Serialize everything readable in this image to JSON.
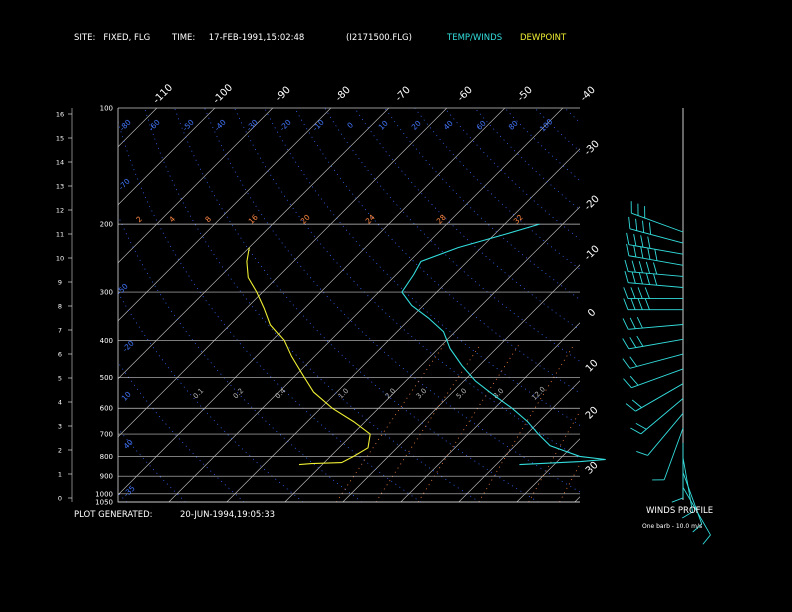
{
  "header": {
    "site": "SITE:   FIXED, FLG",
    "time": "TIME:     17-FEB-1991,15:02:48",
    "file": "(I2171500.FLG)",
    "legend_temp": "TEMP/WINDS",
    "legend_dew": "DEWPOINT"
  },
  "footer": {
    "plot_generated_label": "PLOT GENERATED:",
    "plot_generated_value": "20-JUN-1994,19:05:33",
    "winds_profile": "WINDS PROFILE",
    "barb_note": "One barb - 10.0 m/s"
  },
  "colors": {
    "background": "#000000",
    "temperature": "#33dddd",
    "dewpoint": "#eeee33",
    "isotherm": "#c8c8c8",
    "dry_adiabat": "#3366ff",
    "mixing_ratio": "#ff8844",
    "wind_barb": "#33dddd"
  },
  "chart_data": {
    "type": "line",
    "subtype": "skew-T log-P",
    "title": "",
    "pressure_levels_hpa": [
      100,
      200,
      300,
      400,
      500,
      600,
      700,
      800,
      900,
      1000,
      1050
    ],
    "pressure_labels": [
      "100",
      "200",
      "300",
      "400",
      "500",
      "600",
      "700",
      "800",
      "900",
      "1000",
      "1050"
    ],
    "height_ticks_km": [
      "16",
      "15",
      "14",
      "13",
      "12",
      "11",
      "10",
      "9",
      "8",
      "7",
      "6",
      "5",
      "4",
      "3",
      "2",
      "1",
      "0"
    ],
    "isotherm_labels_top": [
      "-110",
      "-100",
      "-90",
      "-80",
      "-70",
      "-60",
      "-50",
      "-40"
    ],
    "isotherm_labels_right": [
      "-30",
      "-20",
      "-10",
      "0",
      "10",
      "20",
      "30"
    ],
    "adiabat_labels": [
      "-80",
      "-60",
      "-50",
      "-40",
      "-30",
      "-20",
      "-10",
      "0",
      "10",
      "20",
      "40",
      "60",
      "80",
      "100",
      "120",
      "140",
      "160"
    ],
    "mixing_ratio_labels_upper": [
      "2",
      "4",
      "8",
      "16",
      "20",
      "24",
      "28",
      "32"
    ],
    "mixing_ratio_labels_lower": [
      "0.1",
      "0.2",
      "0.4",
      "1.0",
      "2.0",
      "3.0",
      "5.0",
      "8.0",
      "12.0"
    ],
    "series": [
      {
        "name": "TEMP/WINDS",
        "points": [
          [
            -54,
            200
          ],
          [
            -58,
            212
          ],
          [
            -64,
            230
          ],
          [
            -68,
            250
          ],
          [
            -67,
            270
          ],
          [
            -66,
            300
          ],
          [
            -62,
            325
          ],
          [
            -57,
            350
          ],
          [
            -52,
            380
          ],
          [
            -48,
            420
          ],
          [
            -43,
            465
          ],
          [
            -38,
            510
          ],
          [
            -33,
            550
          ],
          [
            -27,
            600
          ],
          [
            -22,
            650
          ],
          [
            -18,
            700
          ],
          [
            -14,
            750
          ],
          [
            -7,
            800
          ],
          [
            -2,
            815
          ],
          [
            -6,
            825
          ],
          [
            -16,
            840
          ]
        ]
      },
      {
        "name": "DEWPOINT",
        "points": [
          [
            -100,
            230
          ],
          [
            -98,
            250
          ],
          [
            -95,
            275
          ],
          [
            -91,
            300
          ],
          [
            -87,
            330
          ],
          [
            -83,
            365
          ],
          [
            -78,
            400
          ],
          [
            -74,
            440
          ],
          [
            -69,
            490
          ],
          [
            -64,
            545
          ],
          [
            -58,
            600
          ],
          [
            -52,
            650
          ],
          [
            -47,
            700
          ],
          [
            -45,
            760
          ],
          [
            -46,
            800
          ],
          [
            -47,
            830
          ],
          [
            -52,
            835
          ],
          [
            -54,
            840
          ]
        ]
      }
    ],
    "winds_profile": [
      {
        "p": 210,
        "dir": 290,
        "speed": 30
      },
      {
        "p": 240,
        "dir": 285,
        "speed": 40
      },
      {
        "p": 270,
        "dir": 280,
        "speed": 40
      },
      {
        "p": 300,
        "dir": 280,
        "speed": 50
      },
      {
        "p": 330,
        "dir": 275,
        "speed": 50
      },
      {
        "p": 360,
        "dir": 275,
        "speed": 50
      },
      {
        "p": 390,
        "dir": 270,
        "speed": 40
      },
      {
        "p": 420,
        "dir": 270,
        "speed": 40
      },
      {
        "p": 460,
        "dir": 265,
        "speed": 30
      },
      {
        "p": 500,
        "dir": 260,
        "speed": 30
      },
      {
        "p": 540,
        "dir": 255,
        "speed": 20
      },
      {
        "p": 580,
        "dir": 250,
        "speed": 20
      },
      {
        "p": 620,
        "dir": 240,
        "speed": 20
      },
      {
        "p": 660,
        "dir": 230,
        "speed": 20
      },
      {
        "p": 700,
        "dir": 220,
        "speed": 10
      },
      {
        "p": 740,
        "dir": 200,
        "speed": 10
      },
      {
        "p": 780,
        "dir": 180,
        "speed": 10
      },
      {
        "p": 820,
        "dir": 170,
        "speed": 10
      },
      {
        "p": 860,
        "dir": 160,
        "speed": 10
      },
      {
        "p": 900,
        "dir": 150,
        "speed": 10
      }
    ],
    "grid": true
  }
}
